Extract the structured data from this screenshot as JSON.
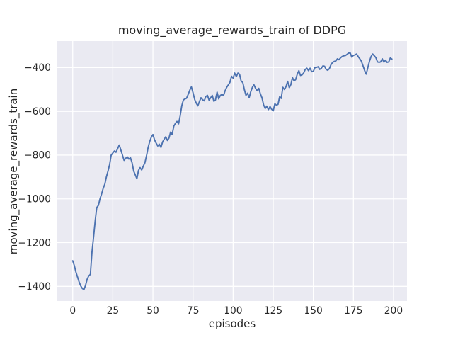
{
  "figure": {
    "title": "moving_average_rewards_train of DDPG",
    "xlabel": "episodes",
    "ylabel": "moving_average_rewards_train"
  },
  "colors": {
    "figure_bg": "#ffffff",
    "axes_bg": "#eaeaf2",
    "grid": "#ffffff",
    "line": "#4c72b0",
    "text": "#262626"
  },
  "chart_data": {
    "type": "line",
    "title": "moving_average_rewards_train of DDPG",
    "xlabel": "episodes",
    "ylabel": "moving_average_rewards_train",
    "grid": true,
    "legend": false,
    "x_ticks": [
      0,
      25,
      50,
      75,
      100,
      125,
      150,
      175,
      200
    ],
    "x_tick_labels": [
      "0",
      "25",
      "50",
      "75",
      "100",
      "125",
      "150",
      "175",
      "200"
    ],
    "y_ticks": [
      -400,
      -600,
      -800,
      -1000,
      -1200,
      -1400
    ],
    "y_tick_labels": [
      "−400",
      "−600",
      "−800",
      "−1000",
      "−1200",
      "−1400"
    ],
    "xlim": [
      -9.6,
      208.4
    ],
    "ylim": [
      -1467,
      -279
    ],
    "series": [
      {
        "name": "moving_average_rewards_train",
        "color": "#4c72b0",
        "x": [
          0,
          1,
          2,
          3,
          4,
          5,
          6,
          7,
          8,
          9,
          10,
          11,
          12,
          13,
          14,
          15,
          16,
          17,
          18,
          19,
          20,
          21,
          22,
          23,
          24,
          25,
          26,
          27,
          28,
          29,
          30,
          31,
          32,
          33,
          34,
          35,
          36,
          37,
          38,
          39,
          40,
          41,
          42,
          43,
          44,
          45,
          46,
          47,
          48,
          49,
          50,
          51,
          52,
          53,
          54,
          55,
          56,
          57,
          58,
          59,
          60,
          61,
          62,
          63,
          64,
          65,
          66,
          67,
          68,
          69,
          70,
          71,
          72,
          73,
          74,
          75,
          76,
          77,
          78,
          79,
          80,
          81,
          82,
          83,
          84,
          85,
          86,
          87,
          88,
          89,
          90,
          91,
          92,
          93,
          94,
          95,
          96,
          97,
          98,
          99,
          100,
          101,
          102,
          103,
          104,
          105,
          106,
          107,
          108,
          109,
          110,
          111,
          112,
          113,
          114,
          115,
          116,
          117,
          118,
          119,
          120,
          121,
          122,
          123,
          124,
          125,
          126,
          127,
          128,
          129,
          130,
          131,
          132,
          133,
          134,
          135,
          136,
          137,
          138,
          139,
          140,
          141,
          142,
          143,
          144,
          145,
          146,
          147,
          148,
          149,
          150,
          151,
          152,
          153,
          154,
          155,
          156,
          157,
          158,
          159,
          160,
          161,
          162,
          163,
          164,
          165,
          166,
          167,
          168,
          169,
          170,
          171,
          172,
          173,
          174,
          175,
          176,
          177,
          178,
          179,
          180,
          181,
          182,
          183,
          184,
          185,
          186,
          187,
          188,
          189,
          190,
          191,
          192,
          193,
          194,
          195,
          196,
          197,
          198,
          199
        ],
        "y": [
          -1283,
          -1305,
          -1335,
          -1358,
          -1380,
          -1398,
          -1410,
          -1415,
          -1395,
          -1368,
          -1352,
          -1345,
          -1245,
          -1175,
          -1100,
          -1040,
          -1030,
          -1000,
          -978,
          -952,
          -933,
          -900,
          -873,
          -843,
          -800,
          -790,
          -781,
          -787,
          -770,
          -754,
          -776,
          -800,
          -824,
          -815,
          -808,
          -818,
          -812,
          -835,
          -873,
          -890,
          -908,
          -870,
          -857,
          -868,
          -850,
          -835,
          -803,
          -765,
          -738,
          -718,
          -706,
          -730,
          -745,
          -758,
          -750,
          -765,
          -740,
          -728,
          -716,
          -733,
          -722,
          -695,
          -706,
          -668,
          -655,
          -646,
          -657,
          -620,
          -575,
          -548,
          -543,
          -540,
          -522,
          -503,
          -488,
          -515,
          -545,
          -562,
          -575,
          -555,
          -538,
          -547,
          -552,
          -532,
          -527,
          -549,
          -538,
          -527,
          -554,
          -548,
          -512,
          -543,
          -528,
          -522,
          -528,
          -506,
          -490,
          -479,
          -468,
          -440,
          -448,
          -425,
          -441,
          -425,
          -430,
          -462,
          -468,
          -500,
          -527,
          -517,
          -538,
          -510,
          -490,
          -479,
          -495,
          -506,
          -495,
          -520,
          -538,
          -570,
          -587,
          -576,
          -592,
          -578,
          -590,
          -598,
          -565,
          -572,
          -568,
          -533,
          -541,
          -490,
          -500,
          -487,
          -463,
          -492,
          -478,
          -446,
          -461,
          -455,
          -430,
          -414,
          -436,
          -433,
          -424,
          -408,
          -403,
          -414,
          -403,
          -419,
          -417,
          -400,
          -399,
          -396,
          -408,
          -403,
          -392,
          -394,
          -408,
          -412,
          -405,
          -387,
          -376,
          -372,
          -370,
          -360,
          -364,
          -355,
          -349,
          -346,
          -345,
          -340,
          -334,
          -333,
          -352,
          -344,
          -342,
          -338,
          -350,
          -360,
          -371,
          -392,
          -414,
          -430,
          -400,
          -371,
          -350,
          -338,
          -346,
          -354,
          -374,
          -376,
          -374,
          -360,
          -375,
          -366,
          -376,
          -374,
          -356,
          -361
        ]
      }
    ]
  }
}
